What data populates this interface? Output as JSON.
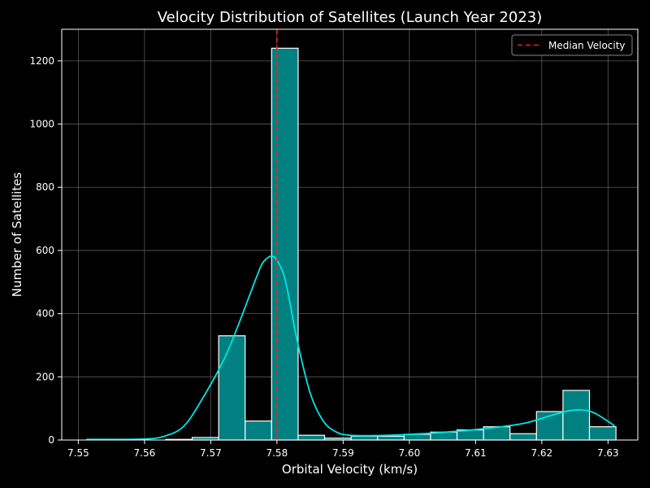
{
  "chart_data": {
    "type": "bar",
    "title": "Velocity Distribution of Satellites (Launch Year 2023)",
    "xlabel": "Orbital Velocity (km/s)",
    "ylabel": "Number of Satellites",
    "xlim": [
      7.5475,
      7.6345
    ],
    "ylim": [
      0,
      1300
    ],
    "xticks": [
      "7.55",
      "7.56",
      "7.57",
      "7.58",
      "7.59",
      "7.60",
      "7.61",
      "7.62",
      "7.63"
    ],
    "yticks": [
      "0",
      "200",
      "400",
      "600",
      "800",
      "1000",
      "1200"
    ],
    "bin_edges": [
      7.5512,
      7.5552,
      7.5592,
      7.5632,
      7.5672,
      7.5712,
      7.5752,
      7.5792,
      7.5832,
      7.5872,
      7.5912,
      7.5952,
      7.5992,
      7.6032,
      7.6072,
      7.6112,
      7.6152,
      7.6192,
      7.6232,
      7.6272,
      7.6312
    ],
    "values": [
      0,
      0,
      0,
      2,
      8,
      330,
      60,
      1240,
      15,
      6,
      12,
      12,
      18,
      25,
      32,
      42,
      20,
      90,
      157,
      42
    ],
    "kde": {
      "x": [
        7.5512,
        7.555,
        7.56,
        7.563,
        7.566,
        7.569,
        7.572,
        7.574,
        7.576,
        7.577,
        7.578,
        7.5795,
        7.581,
        7.582,
        7.583,
        7.585,
        7.587,
        7.589,
        7.591,
        7.595,
        7.6,
        7.605,
        7.61,
        7.615,
        7.618,
        7.621,
        7.624,
        7.626,
        7.628,
        7.631
      ],
      "y": [
        2,
        2,
        3,
        12,
        45,
        140,
        255,
        355,
        465,
        520,
        565,
        580,
        525,
        430,
        320,
        150,
        60,
        25,
        15,
        14,
        18,
        24,
        33,
        45,
        56,
        75,
        92,
        95,
        85,
        45
      ]
    },
    "median": 7.58,
    "legend": {
      "label": "Median Velocity",
      "position": "top-right"
    },
    "grid": true,
    "colors": {
      "bar_fill": "#008080",
      "bar_edge": "#ffffff",
      "kde_line": "#00e5e5",
      "median_line": "#ff1a1a",
      "grid": "#5a5a5a",
      "background": "#000000"
    }
  }
}
